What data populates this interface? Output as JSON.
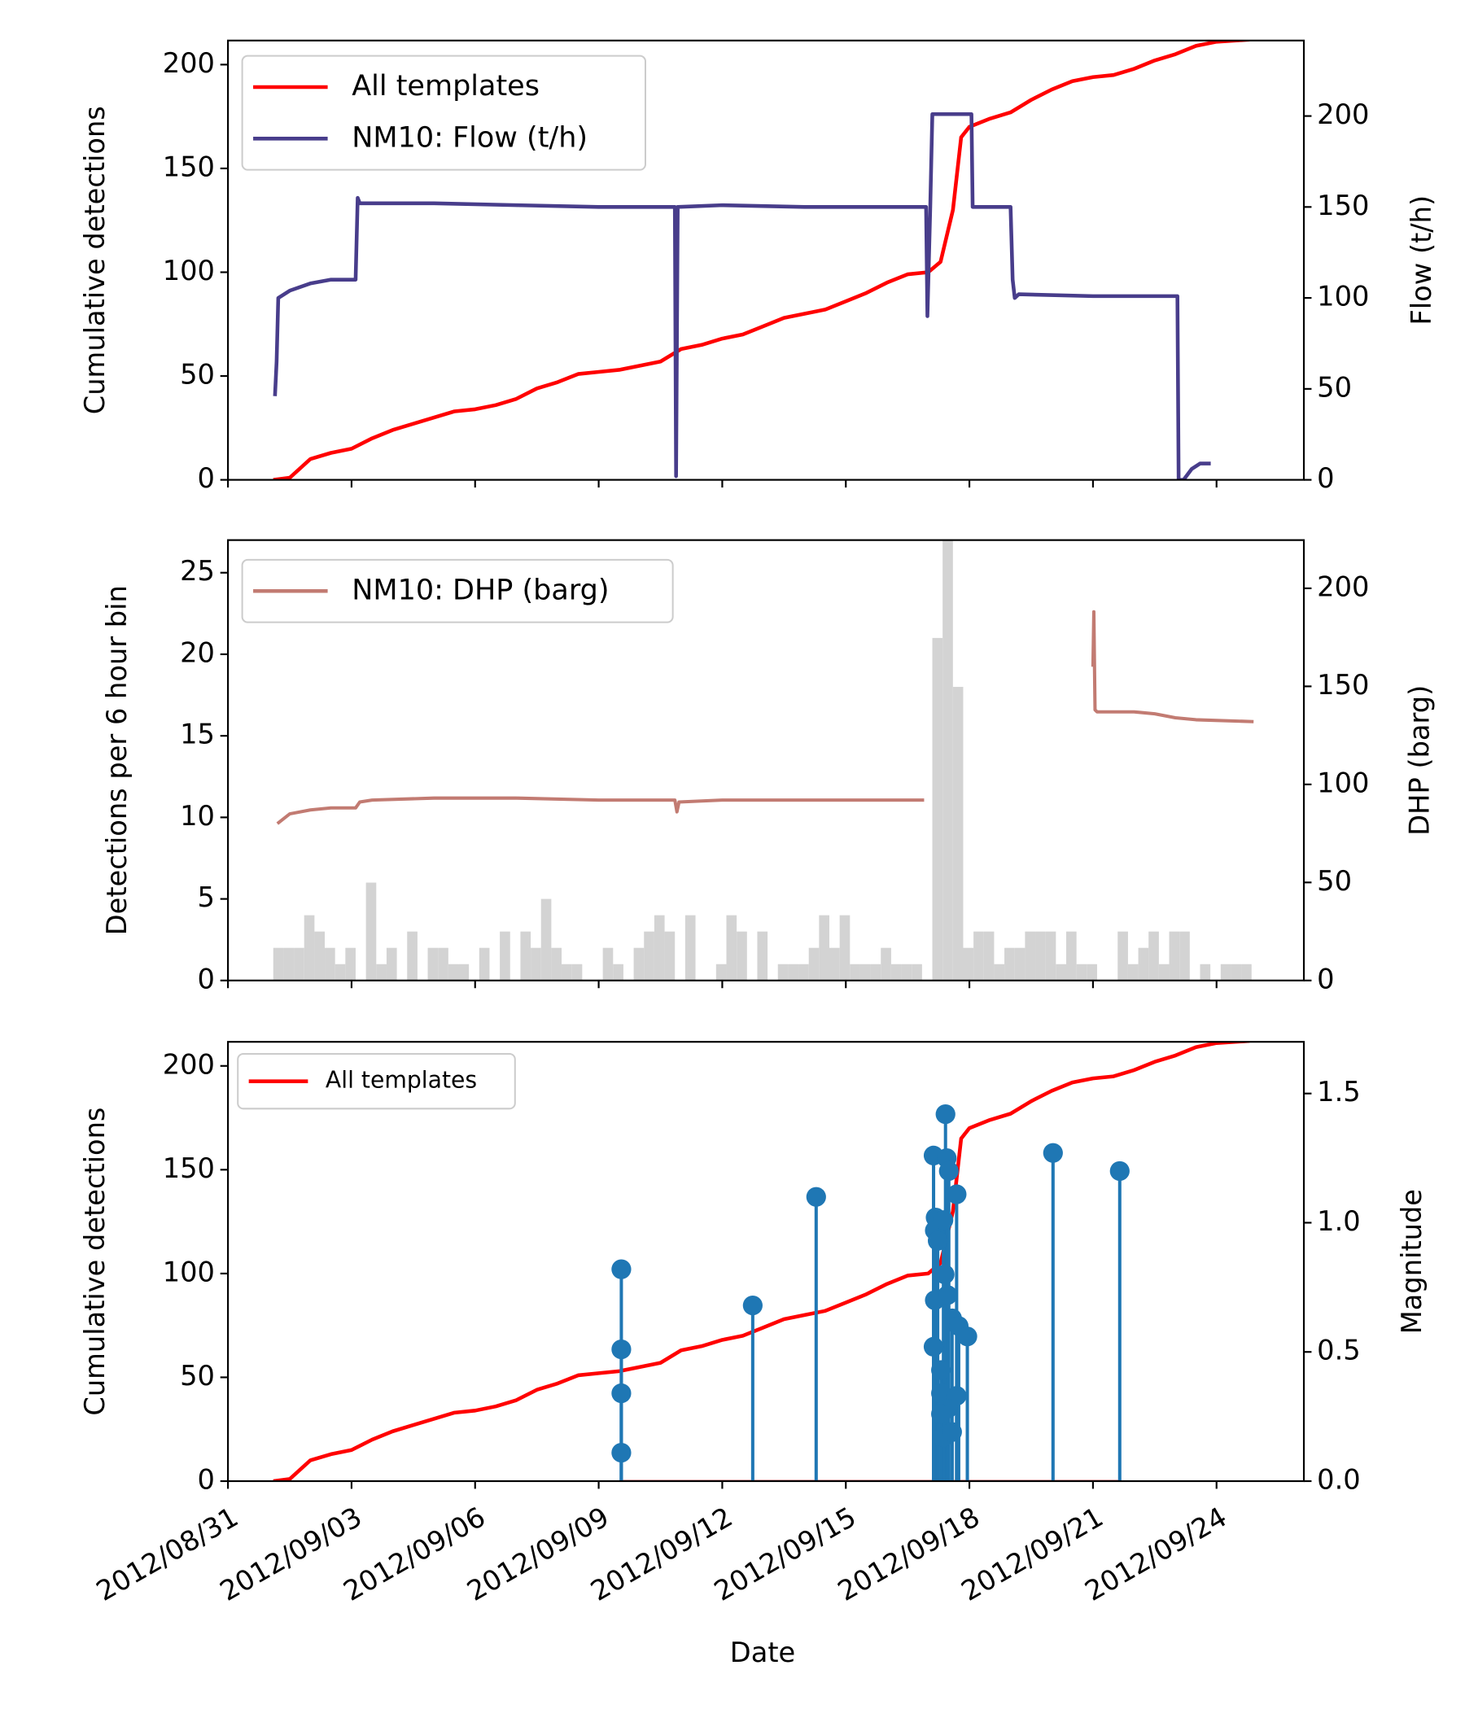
{
  "chart_data": [
    {
      "type": "line",
      "ylabel": "Cumulative detections",
      "y2label": "Flow (t/h)",
      "ylim": [
        0,
        211.6
      ],
      "yticks": [
        0,
        50,
        100,
        150,
        200
      ],
      "y2lim": [
        0,
        241.5
      ],
      "y2ticks": [
        0,
        50,
        100,
        150,
        200
      ],
      "legend": "upper left",
      "series": [
        {
          "name": "All templates",
          "color": "#ff0000",
          "x": [
            1.1,
            1.5,
            2.0,
            2.5,
            3.0,
            3.5,
            4.0,
            4.5,
            5.0,
            5.5,
            6.0,
            6.5,
            7.0,
            7.5,
            8.0,
            8.5,
            9.0,
            9.5,
            10.0,
            10.5,
            11.0,
            11.5,
            12.0,
            12.5,
            13.0,
            13.5,
            14.0,
            14.5,
            15.0,
            15.5,
            16.0,
            16.5,
            17.0,
            17.3,
            17.6,
            17.8,
            18.0,
            18.5,
            19.0,
            19.5,
            20.0,
            20.5,
            21.0,
            21.5,
            22.0,
            22.5,
            23.0,
            23.5,
            24.0,
            24.8
          ],
          "values": [
            0,
            1,
            10,
            13,
            15,
            20,
            24,
            27,
            30,
            33,
            34,
            36,
            39,
            44,
            47,
            51,
            52,
            53,
            55,
            57,
            63,
            65,
            68,
            70,
            74,
            78,
            80,
            82,
            86,
            90,
            95,
            99,
            100,
            105,
            130,
            165,
            170,
            174,
            177,
            183,
            188,
            192,
            194,
            195,
            198,
            202,
            205,
            209,
            211,
            212
          ]
        },
        {
          "name": "NM10: Flow (t/h)",
          "color": "#483d8b",
          "axis": "y2",
          "x": [
            1.14,
            1.18,
            1.22,
            1.5,
            2.0,
            2.5,
            3.1,
            3.15,
            3.2,
            5,
            7,
            9,
            10.85,
            10.88,
            10.92,
            12,
            14,
            16.95,
            16.98,
            17.05,
            17.1,
            18.05,
            18.08,
            19.0,
            19.05,
            19.1,
            19.2,
            21,
            23.05,
            23.08,
            23.2,
            23.4,
            23.6,
            23.86
          ],
          "values": [
            46,
            65,
            100,
            104,
            108,
            110,
            110,
            155,
            152,
            152,
            151,
            150,
            150,
            2,
            150,
            151,
            150,
            150,
            90,
            150,
            201,
            201,
            150,
            150,
            110,
            100,
            102,
            101,
            101,
            0,
            0,
            6,
            9,
            9
          ]
        }
      ]
    },
    {
      "type": "histogram",
      "ylabel": "Detections per 6 hour bin",
      "y2label": "DHP (barg)",
      "ylim": [
        0,
        27
      ],
      "yticks": [
        0,
        5,
        10,
        15,
        20,
        25
      ],
      "y2lim": [
        0,
        224.6
      ],
      "y2ticks": [
        0,
        50,
        100,
        150,
        200
      ],
      "color": "#d3d3d3",
      "bins": [
        1.1,
        1.35,
        1.6,
        1.85,
        2.1,
        2.35,
        2.6,
        2.85,
        3.1,
        3.35,
        3.6,
        3.85,
        4.1,
        4.35,
        4.6,
        4.85,
        5.1,
        5.35,
        5.6,
        5.85,
        6.1,
        6.35,
        6.6,
        6.85,
        7.1,
        7.35,
        7.6,
        7.85,
        8.1,
        8.35,
        8.6,
        8.85,
        9.1,
        9.35,
        9.6,
        9.85,
        10.1,
        10.35,
        10.6,
        10.85,
        11.1,
        11.35,
        11.6,
        11.85,
        12.1,
        12.35,
        12.6,
        12.85,
        13.1,
        13.35,
        13.6,
        13.85,
        14.1,
        14.35,
        14.6,
        14.85,
        15.1,
        15.35,
        15.6,
        15.85,
        16.1,
        16.35,
        16.6,
        16.85,
        17.1,
        17.35,
        17.6,
        17.85,
        18.1,
        18.35,
        18.6,
        18.85,
        19.1,
        19.35,
        19.6,
        19.85,
        20.1,
        20.35,
        20.6,
        20.85,
        21.1,
        21.35,
        21.6,
        21.85,
        22.1,
        22.35,
        22.6,
        22.85,
        23.1,
        23.35,
        23.6,
        23.85,
        24.1,
        24.35,
        24.6,
        24.85
      ],
      "values": [
        2,
        2,
        2,
        4,
        3,
        2,
        1,
        2,
        0,
        6,
        1,
        2,
        0,
        3,
        0,
        2,
        2,
        1,
        1,
        0,
        2,
        0,
        3,
        0,
        3,
        2,
        5,
        2,
        1,
        1,
        0,
        0,
        2,
        1,
        0,
        2,
        3,
        4,
        3,
        0,
        4,
        0,
        0,
        1,
        4,
        3,
        0,
        3,
        0,
        1,
        1,
        1,
        2,
        4,
        2,
        4,
        1,
        1,
        1,
        2,
        1,
        1,
        1,
        0,
        21,
        27,
        18,
        2,
        3,
        3,
        1,
        2,
        2,
        3,
        3,
        3,
        1,
        3,
        1,
        1,
        0,
        0,
        3,
        1,
        2,
        3,
        1,
        3,
        3,
        0,
        1,
        0,
        1,
        1,
        1
      ],
      "legend": "upper left",
      "series": [
        {
          "name": "NM10: DHP (barg)",
          "color": "#c27b72",
          "axis": "y2",
          "x": [
            1.2,
            1.5,
            2.0,
            2.5,
            3.1,
            3.2,
            3.5,
            5,
            7,
            9,
            10.85,
            10.9,
            10.95,
            12,
            14,
            16.9,
            null,
            21.0,
            21.02,
            21.05,
            21.1,
            22,
            22.5,
            23,
            23.5,
            24.9
          ],
          "values": [
            80,
            85,
            87,
            88,
            88,
            91,
            92,
            93,
            93,
            92,
            92,
            86,
            91,
            92,
            92,
            92,
            null,
            160,
            188,
            138,
            137,
            137,
            136,
            134,
            133,
            132
          ]
        }
      ]
    },
    {
      "type": "stem",
      "xlabel": "Date",
      "ylabel": "Cumulative detections",
      "y2label": "Magnitude",
      "xlim": [
        0,
        26.12
      ],
      "xticks": [
        {
          "value": 0,
          "label": "2012/08/31"
        },
        {
          "value": 3,
          "label": "2012/09/03"
        },
        {
          "value": 6,
          "label": "2012/09/06"
        },
        {
          "value": 9,
          "label": "2012/09/09"
        },
        {
          "value": 12,
          "label": "2012/09/12"
        },
        {
          "value": 15,
          "label": "2012/09/15"
        },
        {
          "value": 18,
          "label": "2012/09/18"
        },
        {
          "value": 21,
          "label": "2012/09/21"
        },
        {
          "value": 24,
          "label": "2012/09/24"
        }
      ],
      "ylim": [
        0,
        211.6
      ],
      "yticks": [
        0,
        50,
        100,
        150,
        200
      ],
      "y2lim": [
        0,
        1.7
      ],
      "y2ticks": [
        {
          "value": 0,
          "label": "0.0"
        },
        0.5,
        {
          "value": 1,
          "label": "1.0"
        },
        1.5
      ],
      "legend": "upper left",
      "series": [
        {
          "name": "All templates",
          "color": "#ff0000",
          "x": [
            1.1,
            1.5,
            2.0,
            2.5,
            3.0,
            3.5,
            4.0,
            4.5,
            5.0,
            5.5,
            6.0,
            6.5,
            7.0,
            7.5,
            8.0,
            8.5,
            9.0,
            9.5,
            10.0,
            10.5,
            11.0,
            11.5,
            12.0,
            12.5,
            13.0,
            13.5,
            14.0,
            14.5,
            15.0,
            15.5,
            16.0,
            16.5,
            17.0,
            17.3,
            17.6,
            17.8,
            18.0,
            18.5,
            19.0,
            19.5,
            20.0,
            20.5,
            21.0,
            21.5,
            22.0,
            22.5,
            23.0,
            23.5,
            24.0,
            24.8
          ],
          "values": [
            0,
            1,
            10,
            13,
            15,
            20,
            24,
            27,
            30,
            33,
            34,
            36,
            39,
            44,
            47,
            51,
            52,
            53,
            55,
            57,
            63,
            65,
            68,
            70,
            74,
            78,
            80,
            82,
            86,
            90,
            95,
            99,
            100,
            105,
            130,
            165,
            170,
            174,
            177,
            183,
            188,
            192,
            194,
            195,
            198,
            202,
            205,
            209,
            211,
            212
          ]
        }
      ],
      "stems": {
        "color": "#1f77b4",
        "baseline_color": "#d62728",
        "axis": "y2",
        "x": [
          9.55,
          9.55,
          9.55,
          9.55,
          12.74,
          14.28,
          17.13,
          17.18,
          17.16,
          17.23,
          17.16,
          17.13,
          17.31,
          17.42,
          17.45,
          17.5,
          17.37,
          17.4,
          17.47,
          17.58,
          17.69,
          17.74,
          17.95,
          17.31,
          17.37,
          17.58,
          17.69,
          17.47,
          17.31,
          20.03,
          21.65
        ],
        "values": [
          0.82,
          0.51,
          0.34,
          0.11,
          0.68,
          1.1,
          1.26,
          1.02,
          0.97,
          0.93,
          0.7,
          0.52,
          0.43,
          1.42,
          1.25,
          1.2,
          1.01,
          0.8,
          0.72,
          0.63,
          1.11,
          0.6,
          0.56,
          0.34,
          0.17,
          0.19,
          0.33,
          0.28,
          0.26,
          1.27,
          1.2
        ]
      }
    }
  ]
}
